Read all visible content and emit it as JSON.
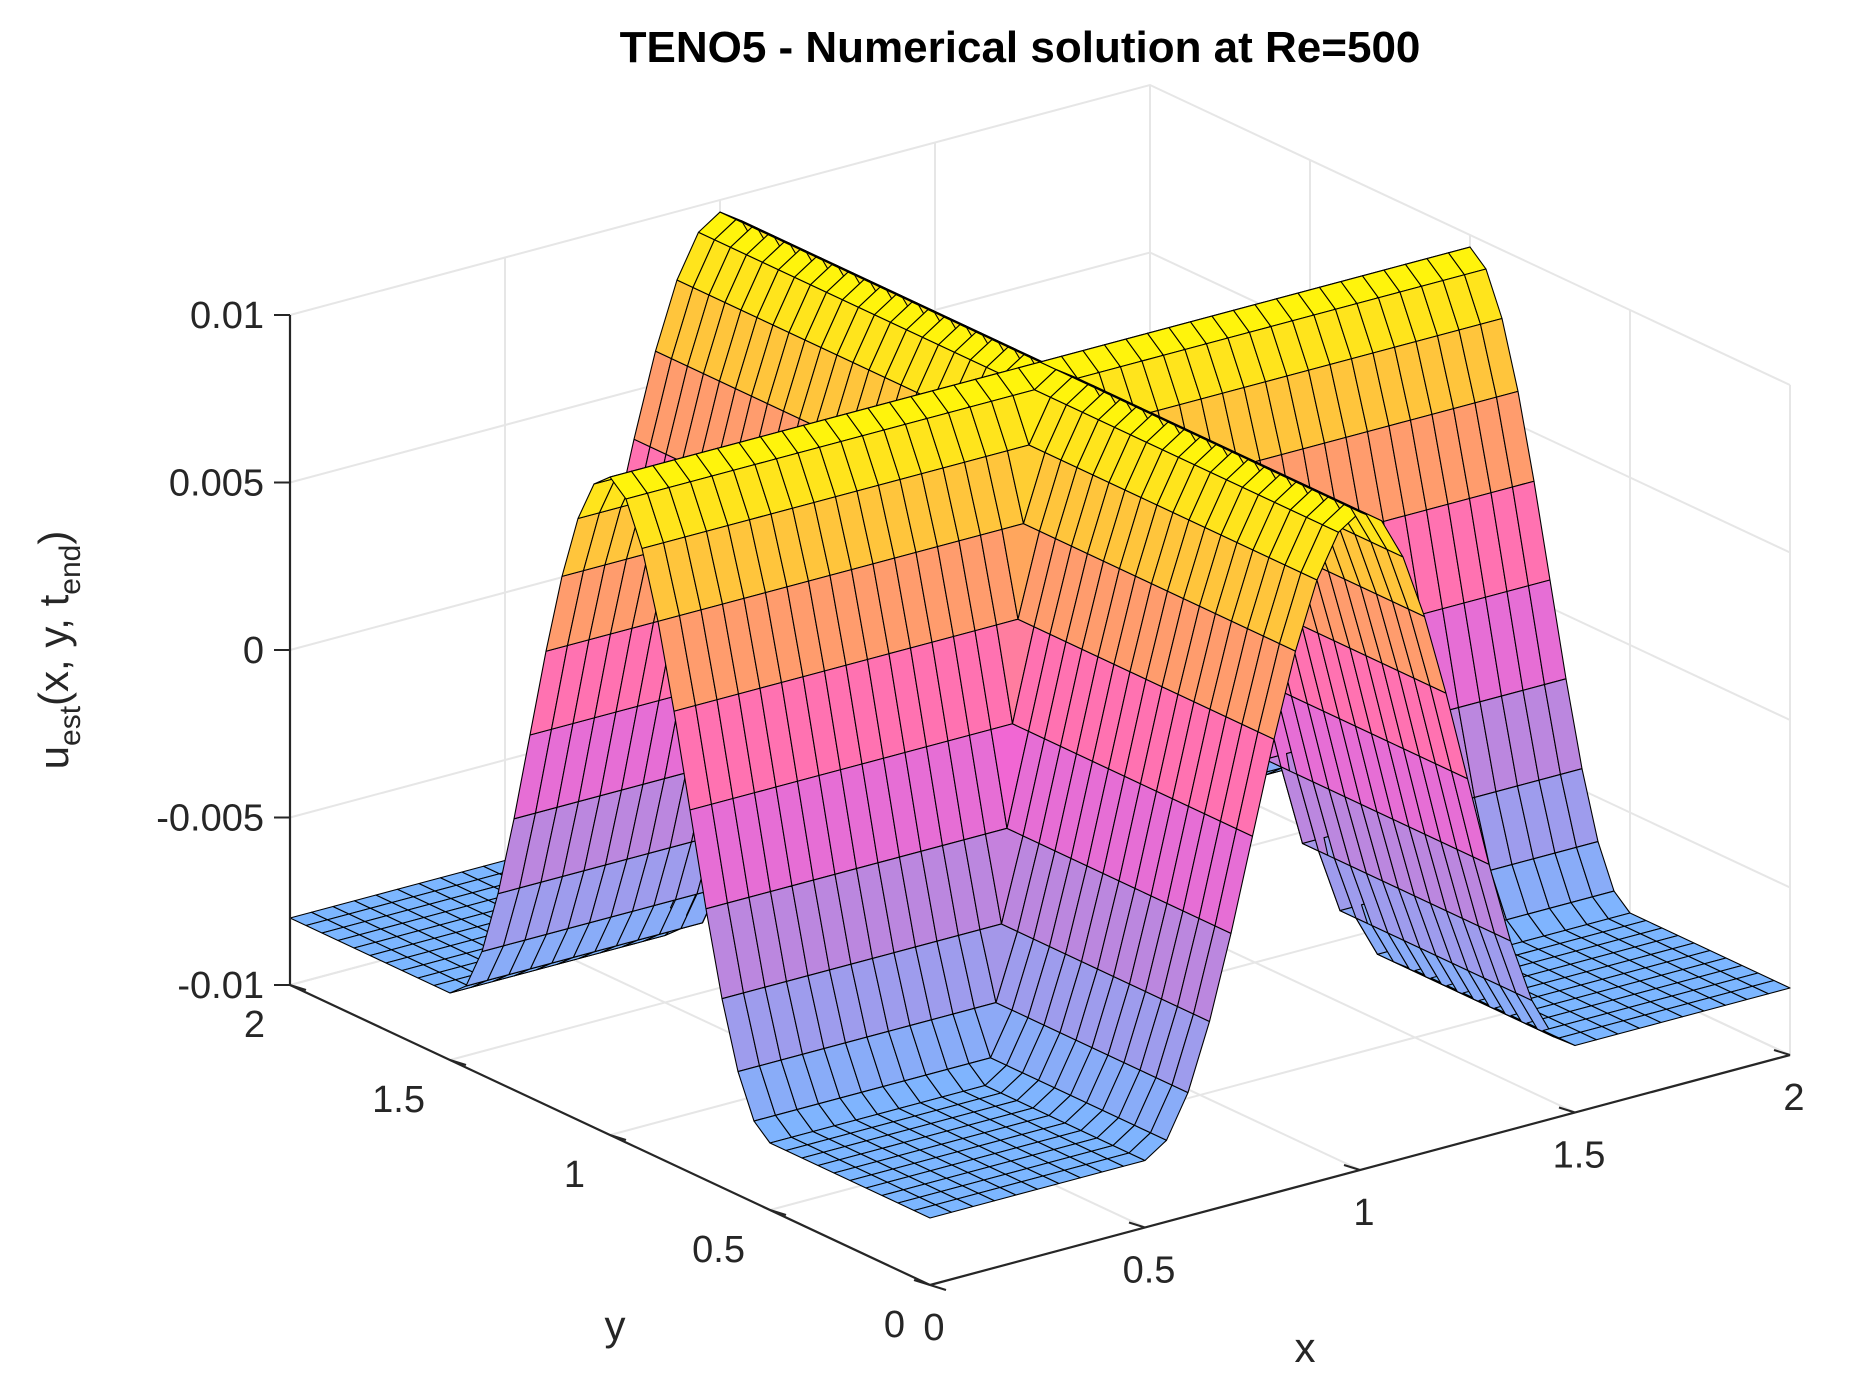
{
  "chart_data": {
    "type": "surface",
    "title": "TENO5 - Numerical solution at Re=500",
    "xlabel": "x",
    "ylabel": "y",
    "zlabel": {
      "main": "u",
      "sub1": "est",
      "mid": "(x, y, t",
      "sub2": "end",
      "close": ")"
    },
    "xlim": [
      0,
      2
    ],
    "ylim": [
      0,
      2
    ],
    "zlim": [
      -0.01,
      0.01
    ],
    "x_ticks": [
      "0",
      "0.5",
      "1",
      "1.5",
      "2"
    ],
    "x_tick_values": [
      0,
      0.5,
      1,
      1.5,
      2
    ],
    "y_ticks": [
      "0",
      "0.5",
      "1",
      "1.5",
      "2"
    ],
    "y_tick_values": [
      0,
      0.5,
      1,
      1.5,
      2
    ],
    "z_ticks": [
      "-0.01",
      "-0.005",
      "0",
      "0.005",
      "0.01"
    ],
    "z_tick_values": [
      -0.01,
      -0.005,
      0,
      0.005,
      0.01
    ],
    "grid": true,
    "grid_points": 41,
    "colormap": [
      "#7cb6ff",
      "#b58ae0",
      "#ff5fd0",
      "#ffa85a",
      "#ffff00"
    ],
    "edge_color": "#000000",
    "surface": {
      "description_of_shape": "two orthogonal ridges (along x at y=1 and along y at x=1) with smooth peaks",
      "amplitude": 0.01,
      "baseline": -0.008,
      "ridge_center_x": 1.0,
      "ridge_center_y": 1.0,
      "ridge_width": 0.5
    }
  }
}
